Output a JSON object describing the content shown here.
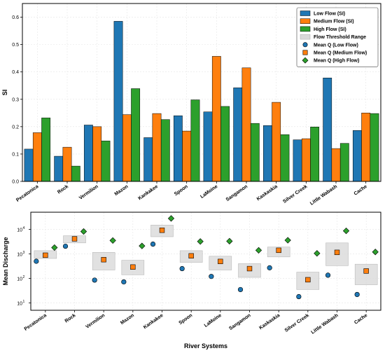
{
  "chart_data": [
    {
      "type": "bar",
      "categories": [
        "Pecatonica",
        "Rock",
        "Vermilion",
        "Mazon",
        "Kankakee",
        "Spoon",
        "LaMoine",
        "Sangamon",
        "Kaskaskia",
        "Silver Creek",
        "Little Wabash",
        "Cache"
      ],
      "ylabel": "SI",
      "xlabel": "",
      "ylim": [
        0,
        0.65
      ],
      "yticks": [
        "0.0",
        "0.1",
        "0.2",
        "0.3",
        "0.4",
        "0.5",
        "0.6"
      ],
      "grid": true,
      "legend_placement": "top-right",
      "series": [
        {
          "name": "Low Flow (SI)",
          "color": "#1f77b4",
          "values": [
            0.118,
            0.092,
            0.206,
            0.585,
            0.16,
            0.24,
            0.254,
            0.342,
            0.204,
            0.152,
            0.378,
            0.186
          ]
        },
        {
          "name": "Medium Flow (SI)",
          "color": "#ff7f0e",
          "values": [
            0.178,
            0.125,
            0.2,
            0.244,
            0.248,
            0.184,
            0.457,
            0.415,
            0.289,
            0.156,
            0.12,
            0.25
          ]
        },
        {
          "name": "High Flow (SI)",
          "color": "#2ca02c",
          "values": [
            0.232,
            0.056,
            0.148,
            0.339,
            0.226,
            0.298,
            0.274,
            0.212,
            0.171,
            0.199,
            0.139,
            0.248
          ]
        }
      ]
    },
    {
      "type": "scatter",
      "categories": [
        "Pecatonica",
        "Rock",
        "Vermilion",
        "Mazon",
        "Kankakee",
        "Spoon",
        "LaMoine",
        "Sangamon",
        "Kaskaskia",
        "Silver Creek",
        "Little Wabash",
        "Cache"
      ],
      "ylabel": "Mean Discharge",
      "xlabel": "River Systems",
      "yscale": "log",
      "ylim": [
        5,
        50000
      ],
      "yticks": [
        {
          "base": "10",
          "exp": "1",
          "value": 10
        },
        {
          "base": "10",
          "exp": "2",
          "value": 100
        },
        {
          "base": "10",
          "exp": "3",
          "value": 1000
        },
        {
          "base": "10",
          "exp": "4",
          "value": 10000
        }
      ],
      "grid": true,
      "threshold_ranges": [
        [
          650,
          1350
        ],
        [
          2800,
          5500
        ],
        [
          220,
          1150
        ],
        [
          140,
          550
        ],
        [
          5000,
          15000
        ],
        [
          450,
          1350
        ],
        [
          220,
          800
        ],
        [
          110,
          400
        ],
        [
          750,
          1900
        ],
        [
          35,
          180
        ],
        [
          330,
          2800
        ],
        [
          55,
          380
        ]
      ],
      "series": [
        {
          "name": "Mean Q (Low Flow)",
          "marker": "circle",
          "color": "#1f77b4",
          "values": [
            500,
            2050,
            85,
            72,
            2500,
            250,
            120,
            35,
            270,
            18,
            135,
            22
          ]
        },
        {
          "name": "Mean Q (Medium Flow)",
          "marker": "square",
          "color": "#ff7f0e",
          "values": [
            880,
            4100,
            580,
            290,
            9200,
            830,
            490,
            250,
            1400,
            88,
            1150,
            200
          ]
        },
        {
          "name": "Mean Q (High Flow)",
          "marker": "diamond",
          "color": "#2ca02c",
          "values": [
            1800,
            8200,
            3500,
            2100,
            28000,
            3200,
            3300,
            1400,
            3600,
            1050,
            8700,
            1200
          ]
        }
      ]
    }
  ],
  "legend": {
    "entries": [
      {
        "label": "Low Flow (SI)",
        "kind": "bar",
        "color": "#1f77b4"
      },
      {
        "label": "Medium Flow (SI)",
        "kind": "bar",
        "color": "#ff7f0e"
      },
      {
        "label": "High Flow (SI)",
        "kind": "bar",
        "color": "#2ca02c"
      },
      {
        "label": "Flow Threshold Range",
        "kind": "range",
        "color": "#d9d9d9"
      },
      {
        "label": "Mean Q (Low Flow)",
        "kind": "circle",
        "color": "#1f77b4"
      },
      {
        "label": "Mean Q (Medium Flow)",
        "kind": "square",
        "color": "#ff7f0e"
      },
      {
        "label": "Mean Q (High Flow)",
        "kind": "diamond",
        "color": "#2ca02c"
      }
    ]
  }
}
